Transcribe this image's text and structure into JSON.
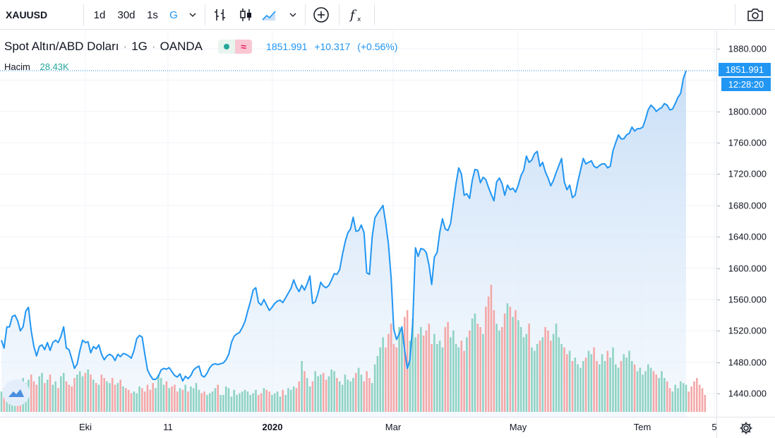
{
  "toolbar": {
    "symbol": "XAUUSD",
    "intervals": [
      "1d",
      "30d",
      "1s",
      "G"
    ],
    "active_interval": "G",
    "icons": [
      "bar-chart-icon",
      "candlestick-icon",
      "area-chart-icon",
      "chevron-down-icon",
      "add-comparison-icon",
      "indicators-icon",
      "chevron-down-icon",
      "snapshot-camera-icon"
    ]
  },
  "legend": {
    "title": "Spot Altın/ABD Doları",
    "interval": "1G",
    "source": "OANDA",
    "last": "1851.991",
    "change": "+10.317",
    "change_pct": "(+0.56%)",
    "volume_label": "Hacim",
    "volume_value": "28.43K"
  },
  "price_axis": {
    "ticks": [
      "1880.000",
      "1840.000",
      "1800.000",
      "1760.000",
      "1720.000",
      "1680.000",
      "1640.000",
      "1600.000",
      "1560.000",
      "1520.000",
      "1480.000",
      "1440.000"
    ],
    "last_price_label": "1851.991",
    "countdown": "12:28:20"
  },
  "time_axis": {
    "labels": [
      {
        "text": "Eki",
        "bold": false
      },
      {
        "text": "11",
        "bold": false
      },
      {
        "text": "2020",
        "bold": true
      },
      {
        "text": "Mar",
        "bold": false
      },
      {
        "text": "May",
        "bold": false
      },
      {
        "text": "Tem",
        "bold": false
      },
      {
        "text": "5",
        "bold": false
      }
    ]
  },
  "colors": {
    "line": "#2196f3",
    "area_top": "#cfe3f9",
    "vol_up": "#8fd3c4",
    "vol_down": "#f4a8a8",
    "grid": "#f0f3fa"
  },
  "chart_data": {
    "type": "area",
    "title": "Spot Altın/ABD Doları",
    "ylim": [
      1430,
      1895
    ],
    "xlabel": "",
    "ylabel": "",
    "grid": true,
    "series": [
      {
        "name": "XAUUSD",
        "x_range": [
          "2019-09",
          "2020-07"
        ],
        "values": [
          1508,
          1498,
          1525,
          1525,
          1538,
          1540,
          1533,
          1520,
          1525,
          1545,
          1550,
          1520,
          1500,
          1488,
          1500,
          1502,
          1496,
          1505,
          1495,
          1505,
          1508,
          1505,
          1513,
          1525,
          1498,
          1496,
          1484,
          1472,
          1478,
          1495,
          1508,
          1505,
          1506,
          1492,
          1500,
          1497,
          1502,
          1490,
          1483,
          1488,
          1490,
          1488,
          1482,
          1490,
          1487,
          1491,
          1490,
          1488,
          1485,
          1495,
          1510,
          1514,
          1512,
          1490,
          1470,
          1463,
          1458,
          1458,
          1462,
          1470,
          1472,
          1471,
          1473,
          1468,
          1463,
          1461,
          1465,
          1456,
          1462,
          1459,
          1463,
          1470,
          1473,
          1475,
          1463,
          1461,
          1466,
          1473,
          1477,
          1478,
          1477,
          1478,
          1479,
          1483,
          1490,
          1505,
          1513,
          1516,
          1518,
          1524,
          1532,
          1545,
          1557,
          1572,
          1575,
          1556,
          1553,
          1560,
          1553,
          1546,
          1550,
          1555,
          1558,
          1559,
          1556,
          1562,
          1568,
          1574,
          1585,
          1576,
          1570,
          1578,
          1572,
          1580,
          1590,
          1555,
          1557,
          1568,
          1582,
          1577,
          1575,
          1578,
          1585,
          1593,
          1592,
          1598,
          1617,
          1633,
          1645,
          1650,
          1665,
          1647,
          1648,
          1655,
          1645,
          1594,
          1592,
          1640,
          1664,
          1670,
          1675,
          1680,
          1658,
          1631,
          1588,
          1522,
          1509,
          1516,
          1525,
          1495,
          1472,
          1483,
          1531,
          1626,
          1615,
          1625,
          1624,
          1620,
          1604,
          1579,
          1614,
          1620,
          1646,
          1663,
          1650,
          1648,
          1657,
          1683,
          1708,
          1728,
          1720,
          1693,
          1695,
          1689,
          1712,
          1726,
          1725,
          1709,
          1716,
          1713,
          1703,
          1694,
          1686,
          1710,
          1715,
          1708,
          1693,
          1706,
          1700,
          1702,
          1697,
          1706,
          1718,
          1725,
          1743,
          1735,
          1738,
          1746,
          1749,
          1730,
          1735,
          1723,
          1715,
          1705,
          1712,
          1722,
          1731,
          1740,
          1710,
          1700,
          1706,
          1690,
          1693,
          1710,
          1725,
          1740,
          1733,
          1735,
          1737,
          1730,
          1728,
          1731,
          1733,
          1733,
          1728,
          1730,
          1750,
          1760,
          1770,
          1765,
          1765,
          1770,
          1772,
          1780,
          1775,
          1778,
          1778,
          1780,
          1790,
          1802,
          1808,
          1805,
          1800,
          1803,
          1805,
          1810,
          1808,
          1802,
          1803,
          1810,
          1818,
          1823,
          1842,
          1852
        ]
      },
      {
        "name": "Hacim",
        "values": [
          12,
          14,
          12,
          11,
          15,
          14,
          13,
          18,
          20,
          17,
          19,
          22,
          18,
          16,
          21,
          23,
          17,
          19,
          22,
          16,
          18,
          14,
          21,
          23,
          18,
          16,
          15,
          20,
          22,
          24,
          21,
          23,
          25,
          22,
          19,
          17,
          16,
          22,
          20,
          18,
          17,
          20,
          16,
          17,
          19,
          15,
          14,
          13,
          11,
          12,
          11,
          15,
          14,
          12,
          16,
          13,
          17,
          14,
          22,
          20,
          16,
          18,
          14,
          15,
          16,
          12,
          14,
          13,
          16,
          12,
          15,
          14,
          17,
          13,
          11,
          12,
          10,
          11,
          12,
          14,
          16,
          10,
          10,
          15,
          14,
          9,
          13,
          10,
          11,
          12,
          13,
          12,
          10,
          11,
          13,
          10,
          11,
          14,
          13,
          12,
          10,
          11,
          12,
          9,
          13,
          10,
          14,
          13,
          15,
          14,
          18,
          30,
          24,
          20,
          15,
          18,
          24,
          21,
          22,
          23,
          19,
          21,
          25,
          24,
          20,
          18,
          16,
          22,
          19,
          18,
          20,
          23,
          26,
          22,
          18,
          24,
          20,
          17,
          28,
          33,
          38,
          44,
          38,
          46,
          52,
          40,
          38,
          50,
          48,
          56,
          60,
          42,
          55,
          44,
          46,
          50,
          45,
          48,
          52,
          40,
          46,
          40,
          42,
          38,
          50,
          53,
          44,
          48,
          40,
          38,
          42,
          36,
          44,
          48,
          55,
          58,
          52,
          50,
          46,
          62,
          68,
          75,
          60,
          52,
          48,
          50,
          58,
          64,
          62,
          56,
          60,
          54,
          50,
          44,
          46,
          52,
          38,
          36,
          40,
          42,
          44,
          50,
          48,
          42,
          46,
          52,
          44,
          40,
          38,
          34,
          36,
          30,
          32,
          28,
          26,
          30,
          32,
          36,
          34,
          38,
          30,
          28,
          34,
          30,
          36,
          32,
          38,
          28,
          26,
          30,
          34,
          32,
          36,
          30,
          28,
          24,
          26,
          22,
          24,
          28,
          26,
          24,
          22,
          20,
          24,
          20,
          18,
          14,
          12,
          16,
          14,
          18,
          17,
          16,
          12,
          15,
          18,
          20,
          16,
          14,
          10
        ]
      }
    ]
  }
}
